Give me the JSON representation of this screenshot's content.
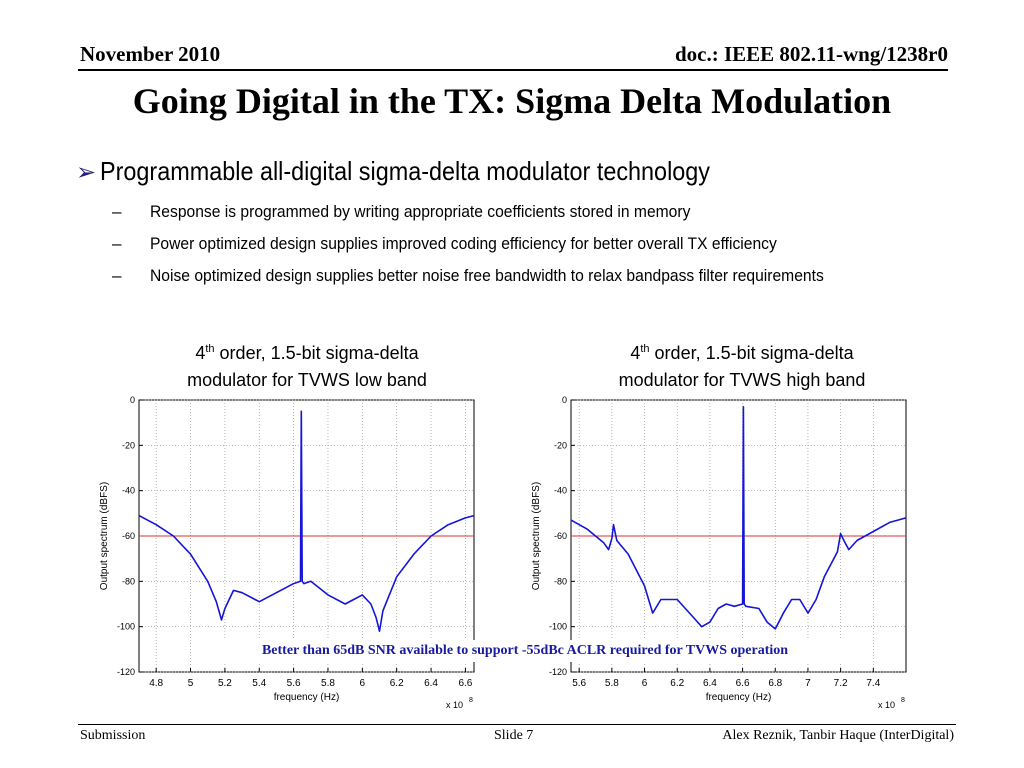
{
  "header": {
    "date": "November 2010",
    "doc": "doc.: IEEE 802.11-wng/1238r0"
  },
  "slide_title": "Going Digital in the TX: Sigma Delta Modulation",
  "bullets": {
    "main": "Programmable all-digital sigma-delta modulator technology",
    "subs": [
      "Response is programmed by writing appropriate coefficients stored in memory",
      "Power optimized design supplies improved coding efficiency for better overall TX efficiency",
      "Noise optimized design supplies  better noise free bandwidth to relax bandpass filter requirements"
    ]
  },
  "captions": [
    {
      "ord": "4",
      "sup": "th",
      "rest": " order, 1.5-bit sigma-delta",
      "line2": "modulator for TVWS low band"
    },
    {
      "ord": "4",
      "sup": "th",
      "rest": " order, 1.5-bit sigma-delta",
      "line2": "modulator for TVWS high band"
    }
  ],
  "callout": "Better than 65dB SNR available to support -55dBc ACLR required for TVWS operation",
  "footer": {
    "left": "Submission",
    "center": "Slide 7",
    "right": "Alex Reznik, Tanbir Haque (InterDigital)"
  },
  "colors": {
    "trace": "#1515d8",
    "threshold": "#e03030",
    "callout_text": "#1a1aa0",
    "bullet_arrow": "#1f1f7a"
  },
  "chart_data": [
    {
      "type": "line",
      "xlabel": "frequency (Hz)",
      "ylabel": "Output spectrum (dBFS)",
      "x_multiplier": "x 10",
      "x_exponent": "8",
      "xlim": [
        4.7,
        6.65
      ],
      "ylim": [
        -120,
        0
      ],
      "x_ticks": [
        4.8,
        5,
        5.2,
        5.4,
        5.6,
        5.8,
        6,
        6.2,
        6.4,
        6.6
      ],
      "x_tick_labels": [
        "4.8",
        "5",
        "5.2",
        "5.4",
        "5.6",
        "5.8",
        "6",
        "6.2",
        "6.4",
        "6.6"
      ],
      "y_ticks": [
        0,
        -20,
        -40,
        -60,
        -80,
        -100,
        -120
      ],
      "y_tick_labels": [
        "0",
        "-20",
        "-40",
        "-60",
        "-80",
        "-100",
        "-120"
      ],
      "grid": true,
      "threshold": -60,
      "series": [
        {
          "x": [
            4.7,
            4.8,
            4.9,
            5.0,
            5.1,
            5.15,
            5.18,
            5.2,
            5.25,
            5.3,
            5.4,
            5.5,
            5.6,
            5.64,
            5.645,
            5.65,
            5.66,
            5.7,
            5.8,
            5.9,
            5.95,
            6.0,
            6.05,
            6.08,
            6.1,
            6.12,
            6.2,
            6.3,
            6.4,
            6.5,
            6.6,
            6.65
          ],
          "y": [
            -51,
            -55,
            -60,
            -68,
            -80,
            -89,
            -97,
            -92,
            -84,
            -85,
            -89,
            -85,
            -81,
            -80,
            -5,
            -80,
            -81,
            -80,
            -86,
            -90,
            -88,
            -86,
            -90,
            -96,
            -102,
            -93,
            -78,
            -68,
            -60,
            -55,
            -52,
            -51
          ]
        }
      ]
    },
    {
      "type": "line",
      "xlabel": "frequency (Hz)",
      "ylabel": "Output spectrum (dBFS)",
      "x_multiplier": "x 10",
      "x_exponent": "8",
      "xlim": [
        5.55,
        7.6
      ],
      "ylim": [
        -120,
        0
      ],
      "x_ticks": [
        5.6,
        5.8,
        6,
        6.2,
        6.4,
        6.6,
        6.8,
        7,
        7.2,
        7.4
      ],
      "x_tick_labels": [
        "5.6",
        "5.8",
        "6",
        "6.2",
        "6.4",
        "6.6",
        "6.8",
        "7",
        "7.2",
        "7.4"
      ],
      "y_ticks": [
        0,
        -20,
        -40,
        -60,
        -80,
        -100,
        -120
      ],
      "y_tick_labels": [
        "0",
        "-20",
        "-40",
        "-60",
        "-80",
        "-100",
        "-120"
      ],
      "grid": true,
      "threshold": -60,
      "series": [
        {
          "x": [
            5.55,
            5.65,
            5.75,
            5.78,
            5.8,
            5.81,
            5.83,
            5.9,
            6.0,
            6.05,
            6.1,
            6.2,
            6.3,
            6.35,
            6.4,
            6.45,
            6.5,
            6.55,
            6.6,
            6.605,
            6.61,
            6.62,
            6.7,
            6.75,
            6.8,
            6.85,
            6.9,
            6.95,
            7.0,
            7.05,
            7.1,
            7.18,
            7.2,
            7.22,
            7.25,
            7.3,
            7.4,
            7.5,
            7.6
          ],
          "y": [
            -53,
            -57,
            -63,
            -66,
            -61,
            -55,
            -62,
            -68,
            -82,
            -94,
            -88,
            -88,
            -96,
            -100,
            -98,
            -92,
            -90,
            -91,
            -90,
            -3,
            -90,
            -91,
            -92,
            -98,
            -101,
            -94,
            -88,
            -88,
            -94,
            -88,
            -78,
            -67,
            -59,
            -62,
            -66,
            -62,
            -58,
            -54,
            -52
          ]
        }
      ]
    }
  ]
}
